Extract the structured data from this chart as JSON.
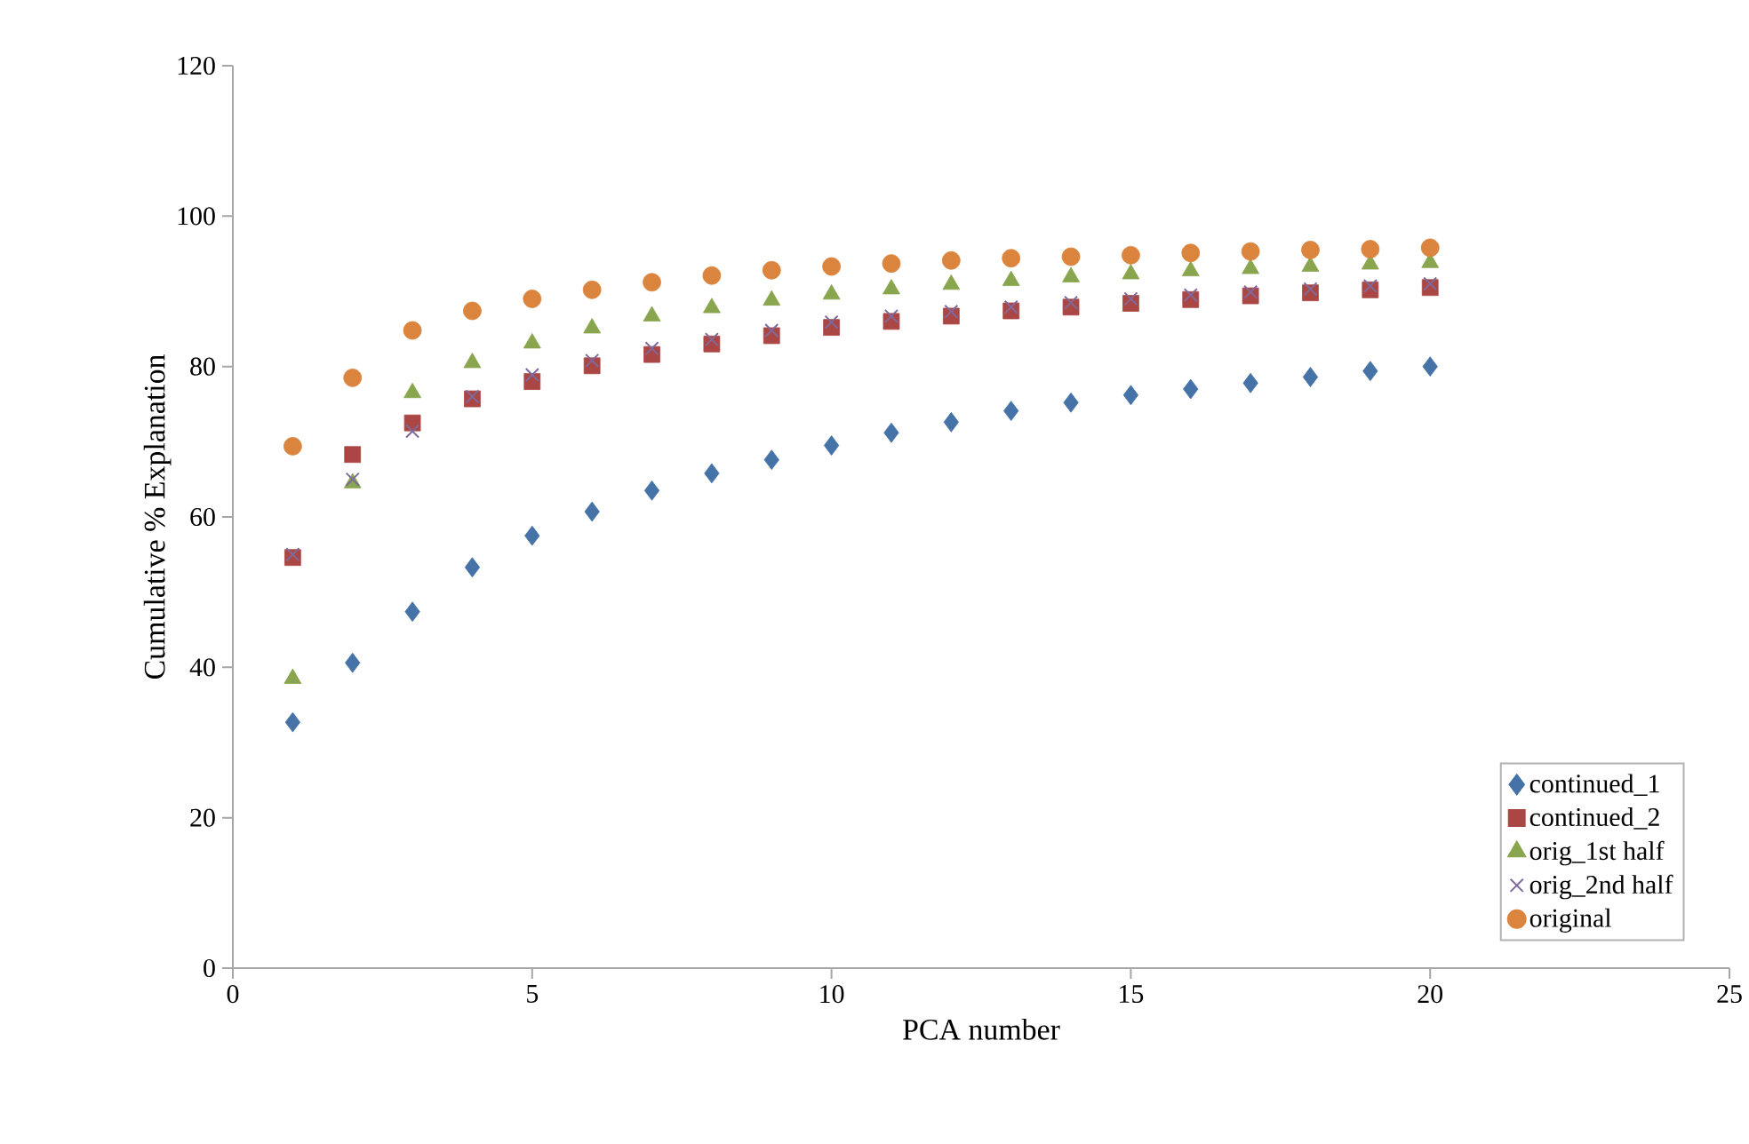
{
  "chart_data": {
    "type": "scatter",
    "xlabel": "PCA number",
    "ylabel": "Cumulative % Explanation",
    "x": [
      1,
      2,
      3,
      4,
      5,
      6,
      7,
      8,
      9,
      10,
      11,
      12,
      13,
      14,
      15,
      16,
      17,
      18,
      19,
      20
    ],
    "series": [
      {
        "name": "continued_1",
        "color": "#4572a7",
        "marker": "diamond",
        "values": [
          32.7,
          40.6,
          47.4,
          53.3,
          57.5,
          60.7,
          63.5,
          65.8,
          67.6,
          69.5,
          71.2,
          72.6,
          74.1,
          75.2,
          76.2,
          77.0,
          77.8,
          78.6,
          79.4,
          80.0
        ]
      },
      {
        "name": "continued_2",
        "color": "#aa4643",
        "marker": "square",
        "values": [
          54.6,
          68.3,
          72.5,
          75.7,
          78.0,
          80.1,
          81.6,
          83.0,
          84.1,
          85.2,
          86.0,
          86.7,
          87.4,
          87.9,
          88.4,
          88.9,
          89.4,
          89.8,
          90.2,
          90.5
        ]
      },
      {
        "name": "orig_1st half",
        "color": "#89a54e",
        "marker": "triangle",
        "values": [
          38.5,
          64.5,
          76.5,
          80.5,
          83.1,
          85.1,
          86.7,
          87.8,
          88.8,
          89.6,
          90.3,
          90.9,
          91.4,
          91.9,
          92.3,
          92.7,
          93.0,
          93.3,
          93.6,
          93.8
        ]
      },
      {
        "name": "orig_2nd half",
        "color": "#80699b",
        "marker": "cross",
        "values": [
          55.0,
          65.0,
          71.4,
          76.0,
          78.9,
          80.8,
          82.4,
          83.6,
          84.8,
          85.9,
          86.7,
          87.3,
          87.9,
          88.5,
          89.0,
          89.5,
          89.9,
          90.3,
          90.7,
          91.0
        ]
      },
      {
        "name": "original",
        "color": "#db843d",
        "marker": "circle",
        "values": [
          69.4,
          78.5,
          84.8,
          87.4,
          89.0,
          90.2,
          91.2,
          92.1,
          92.8,
          93.3,
          93.7,
          94.1,
          94.4,
          94.6,
          94.8,
          95.1,
          95.3,
          95.5,
          95.6,
          95.8
        ]
      }
    ],
    "xlim": [
      0,
      25
    ],
    "xticks": [
      0,
      5,
      10,
      15,
      20,
      25
    ],
    "ylim": [
      0,
      120
    ],
    "yticks": [
      0,
      20,
      40,
      60,
      80,
      100,
      120
    ],
    "grid": false,
    "legend": "bottom right"
  }
}
